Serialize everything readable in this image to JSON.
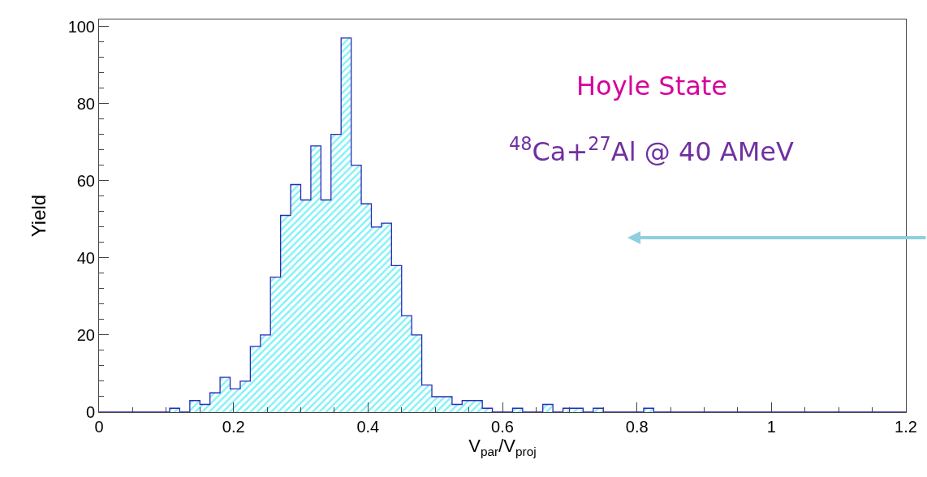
{
  "chart_data": {
    "type": "histogram",
    "xlabel": "V$_{par}$/V$_{proj}$",
    "ylabel": "Yield",
    "annotations": [
      "Hoyle State",
      "$^{48}$Ca+$^{27}$Al @ 40 AMeV"
    ],
    "bins": [
      0,
      0.015,
      0.03,
      0.045,
      0.06,
      0.075,
      0.09,
      0.105,
      0.12,
      0.135,
      0.15,
      0.165,
      0.18,
      0.195,
      0.21,
      0.225,
      0.24,
      0.255,
      0.27,
      0.285,
      0.3,
      0.315,
      0.33,
      0.345,
      0.36,
      0.375,
      0.39,
      0.405,
      0.42,
      0.435,
      0.45,
      0.465,
      0.48,
      0.495,
      0.51,
      0.525,
      0.54,
      0.555,
      0.57,
      0.585,
      0.6,
      0.615,
      0.63,
      0.645,
      0.66,
      0.675,
      0.69,
      0.705,
      0.72,
      0.735,
      0.75,
      0.765,
      0.78,
      0.795,
      0.81,
      0.825,
      0.84,
      0.855,
      0.87,
      0.885,
      0.9,
      0.915,
      0.93,
      0.945,
      0.96,
      0.975,
      0.99,
      1.005,
      1.02,
      1.035,
      1.05,
      1.065,
      1.08,
      1.095,
      1.11,
      1.125,
      1.14,
      1.155,
      1.17,
      1.185,
      1.2
    ],
    "values": [
      0,
      0,
      0,
      0,
      0,
      0,
      0,
      1,
      0,
      3,
      2,
      5,
      9,
      6,
      8,
      17,
      20,
      35,
      51,
      59,
      55,
      69,
      55,
      72,
      97,
      64,
      54,
      48,
      49,
      38,
      25,
      20,
      7,
      4,
      4,
      2,
      3,
      3,
      1,
      0,
      0,
      1,
      0,
      0,
      2,
      0,
      1,
      1,
      0,
      1,
      0,
      0,
      0,
      0,
      1,
      0,
      0,
      0,
      0,
      0,
      0,
      0,
      0,
      0,
      0,
      0,
      0,
      0,
      0,
      0,
      0,
      0,
      0,
      0,
      0,
      0,
      0,
      0,
      0,
      0
    ],
    "color": "#2a2ab8",
    "xlim": [
      0,
      1.2
    ],
    "xticks": [
      0,
      0.2,
      0.4,
      0.6,
      0.8,
      1,
      1.2
    ],
    "ylim": [
      0,
      101.8
    ],
    "yticks": [
      0,
      20,
      40,
      60,
      80,
      100
    ],
    "grid": false
  }
}
